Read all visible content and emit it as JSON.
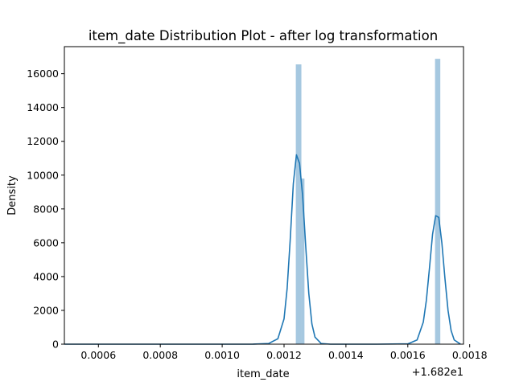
{
  "chart_data": {
    "type": "bar",
    "title": "item_date Distribution Plot - after log transformation",
    "xlabel": "item_date",
    "ylabel": "Density",
    "x_offset_label": "+1.682e1",
    "xlim": [
      0.00049,
      0.00178
    ],
    "ylim": [
      0,
      17600
    ],
    "x_ticks": [
      0.0006,
      0.0008,
      0.001,
      0.0012,
      0.0014,
      0.0016,
      0.0018
    ],
    "x_tick_labels": [
      "0.0006",
      "0.0008",
      "0.0010",
      "0.0012",
      "0.0014",
      "0.0016",
      "0.0018"
    ],
    "y_ticks": [
      0,
      2000,
      4000,
      6000,
      8000,
      10000,
      12000,
      14000,
      16000
    ],
    "y_tick_labels": [
      "0",
      "2000",
      "4000",
      "6000",
      "8000",
      "10000",
      "12000",
      "14000",
      "16000"
    ],
    "grid": false,
    "histogram": {
      "name": "histogram",
      "color": "#a6c8e0",
      "bins": [
        {
          "x0": 0.001238,
          "x1": 0.001256,
          "value": 16550
        },
        {
          "x0": 0.001256,
          "x1": 0.001266,
          "value": 9800
        },
        {
          "x0": 0.001688,
          "x1": 0.001705,
          "value": 16880
        }
      ]
    },
    "kde": {
      "name": "kde",
      "color": "#1f77b4",
      "x": [
        0.00049,
        0.001,
        0.0011,
        0.00115,
        0.00118,
        0.0012,
        0.00121,
        0.00122,
        0.00123,
        0.00124,
        0.00125,
        0.00126,
        0.00127,
        0.00128,
        0.00129,
        0.0013,
        0.00132,
        0.00135,
        0.0014,
        0.0015,
        0.0016,
        0.00163,
        0.00165,
        0.00166,
        0.00167,
        0.00168,
        0.00169,
        0.0017,
        0.00171,
        0.00172,
        0.00173,
        0.00174,
        0.00175,
        0.00177
      ],
      "y": [
        0,
        0,
        2,
        40,
        320,
        1500,
        3300,
        6200,
        9500,
        11200,
        10700,
        8800,
        5800,
        3000,
        1200,
        420,
        40,
        0,
        0,
        0,
        20,
        250,
        1300,
        2600,
        4500,
        6500,
        7600,
        7500,
        6000,
        3900,
        2000,
        800,
        250,
        10
      ]
    }
  }
}
